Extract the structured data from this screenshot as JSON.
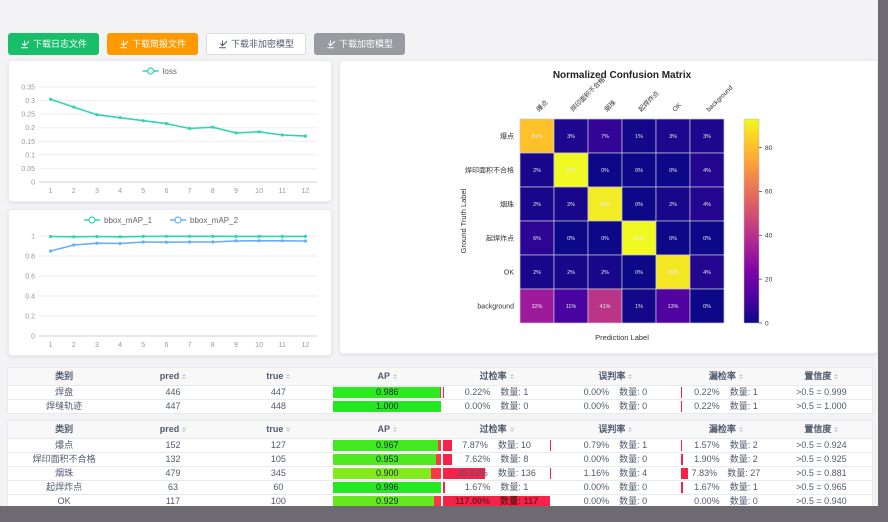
{
  "toolbar": {
    "buttons": [
      {
        "id": "download-log-file",
        "label": "下载日志文件",
        "variant": "green"
      },
      {
        "id": "download-report-file",
        "label": "下载简报文件",
        "variant": "orange"
      },
      {
        "id": "download-unencrypted-model",
        "label": "下载非加密模型",
        "variant": "white"
      },
      {
        "id": "download-encrypted-model",
        "label": "下载加密模型",
        "variant": "gray"
      }
    ]
  },
  "colors": {
    "accent_green": "#19be6b",
    "accent_orange": "#ff9900",
    "gray_button": "#9a9ba1",
    "teal_line": "#2fd5b2",
    "blue_line": "#64b1f2",
    "rate_bar_red": "#f5224a",
    "ap_remainder_red": "#ff3742"
  },
  "chart_data": [
    {
      "type": "line",
      "name": "loss-chart",
      "x": [
        1,
        2,
        3,
        4,
        5,
        6,
        7,
        8,
        9,
        10,
        11,
        12
      ],
      "series": [
        {
          "name": "loss",
          "color": "#2fd5b2",
          "values": [
            0.305,
            0.276,
            0.248,
            0.237,
            0.226,
            0.215,
            0.197,
            0.202,
            0.181,
            0.185,
            0.173,
            0.169
          ]
        }
      ],
      "ylim": [
        0,
        0.35
      ],
      "yticks": [
        0,
        0.05,
        0.1,
        0.15,
        0.2,
        0.25,
        0.3,
        0.35
      ],
      "legend_position": "top",
      "grid": true
    },
    {
      "type": "line",
      "name": "bbox-map-chart",
      "x": [
        1,
        2,
        3,
        4,
        5,
        6,
        7,
        8,
        9,
        10,
        11,
        12
      ],
      "series": [
        {
          "name": "bbox_mAP_1",
          "color": "#2fd5b2",
          "values": [
            0.995,
            0.992,
            0.995,
            0.992,
            0.996,
            0.997,
            0.997,
            0.997,
            0.996,
            0.996,
            0.996,
            0.996
          ]
        },
        {
          "name": "bbox_mAP_2",
          "color": "#64b1f2",
          "values": [
            0.85,
            0.91,
            0.928,
            0.925,
            0.94,
            0.938,
            0.94,
            0.94,
            0.951,
            0.952,
            0.952,
            0.95
          ]
        }
      ],
      "ylim": [
        0,
        1
      ],
      "yticks": [
        0,
        0.2,
        0.4,
        0.6,
        0.8,
        1
      ],
      "legend_position": "top",
      "grid": true
    },
    {
      "type": "heatmap",
      "name": "confusion-matrix",
      "title": "Normalized Confusion Matrix",
      "xlabel": "Prediction Label",
      "ylabel": "Ground Truth Label",
      "labels": [
        "爆点",
        "焊印面积不合格",
        "烟珠",
        "起焊炸点",
        "OK",
        "background"
      ],
      "values_percent": [
        [
          81,
          3,
          7,
          1,
          3,
          3
        ],
        [
          2,
          93,
          0,
          0,
          0,
          4
        ],
        [
          2,
          2,
          90,
          0,
          2,
          4
        ],
        [
          6,
          0,
          0,
          93,
          0,
          0
        ],
        [
          2,
          2,
          2,
          0,
          89,
          4
        ],
        [
          32,
          11,
          41,
          1,
          13,
          0
        ]
      ],
      "vmax": 93,
      "colorbar_ticks": [
        0,
        20,
        40,
        60,
        80
      ],
      "colormap": "plasma"
    }
  ],
  "tables": {
    "columns": [
      {
        "key": "category",
        "label": "类别",
        "sortable": false
      },
      {
        "key": "pred",
        "label": "pred",
        "sortable": true
      },
      {
        "key": "true",
        "label": "true",
        "sortable": true
      },
      {
        "key": "ap",
        "label": "AP",
        "sortable": true
      },
      {
        "key": "over",
        "label": "过检率",
        "sortable": true
      },
      {
        "key": "mis",
        "label": "误判率",
        "sortable": true
      },
      {
        "key": "miss",
        "label": "漏检率",
        "sortable": true
      },
      {
        "key": "conf",
        "label": "置信度",
        "sortable": true
      }
    ],
    "count_label": "数量",
    "table1": {
      "rows": [
        {
          "category": "焊盘",
          "pred": 446,
          "true": 447,
          "ap": "0.986",
          "over": {
            "pct": "0.22%",
            "n": 1
          },
          "mis": {
            "pct": "0.00%",
            "n": 0
          },
          "miss": {
            "pct": "0.22%",
            "n": 1
          },
          "conf": ">0.5 = 0.999"
        },
        {
          "category": "焊缝轨迹",
          "pred": 447,
          "true": 448,
          "ap": "1.000",
          "over": {
            "pct": "0.00%",
            "n": 0
          },
          "mis": {
            "pct": "0.00%",
            "n": 0
          },
          "miss": {
            "pct": "0.22%",
            "n": 1
          },
          "conf": ">0.5 = 1.000"
        }
      ]
    },
    "table2": {
      "rows": [
        {
          "category": "爆点",
          "pred": 152,
          "true": 127,
          "ap": "0.967",
          "over": {
            "pct": "7.87%",
            "n": 10
          },
          "mis": {
            "pct": "0.79%",
            "n": 1
          },
          "miss": {
            "pct": "1.57%",
            "n": 2
          },
          "conf": ">0.5 = 0.924"
        },
        {
          "category": "焊印面积不合格",
          "pred": 132,
          "true": 105,
          "ap": "0.953",
          "over": {
            "pct": "7.62%",
            "n": 8
          },
          "mis": {
            "pct": "0.00%",
            "n": 0
          },
          "miss": {
            "pct": "1.90%",
            "n": 2
          },
          "conf": ">0.5 = 0.925"
        },
        {
          "category": "烟珠",
          "pred": 479,
          "true": 345,
          "ap": "0.900",
          "over": {
            "pct": "39.42%",
            "n": 136
          },
          "mis": {
            "pct": "1.16%",
            "n": 4
          },
          "miss": {
            "pct": "7.83%",
            "n": 27
          },
          "conf": ">0.5 = 0.881"
        },
        {
          "category": "起焊炸点",
          "pred": 63,
          "true": 60,
          "ap": "0.996",
          "over": {
            "pct": "1.67%",
            "n": 1
          },
          "mis": {
            "pct": "0.00%",
            "n": 0
          },
          "miss": {
            "pct": "1.67%",
            "n": 1
          },
          "conf": ">0.5 = 0.965"
        },
        {
          "category": "OK",
          "pred": 117,
          "true": 100,
          "ap": "0.929",
          "over": {
            "pct": "117.00%",
            "n": 117
          },
          "mis": {
            "pct": "0.00%",
            "n": 0
          },
          "miss": {
            "pct": "0.00%",
            "n": 0
          },
          "conf": ">0.5 = 0.940"
        }
      ]
    }
  }
}
